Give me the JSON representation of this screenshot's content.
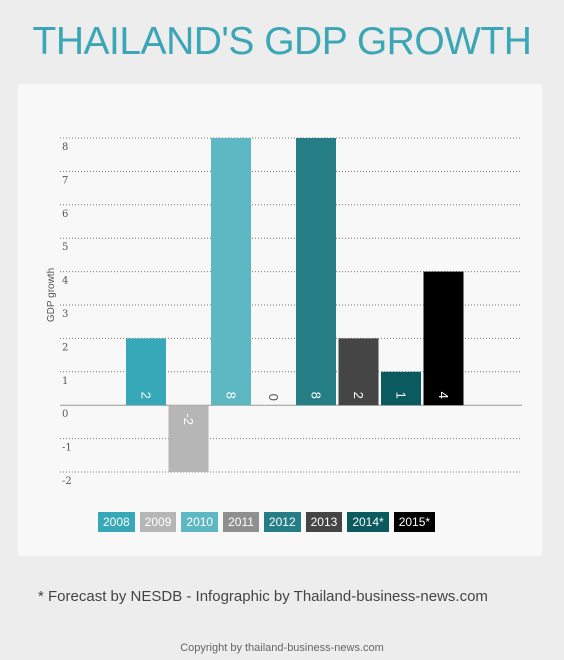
{
  "title": "THAILAND'S GDP GROWTH",
  "note": "* Forecast by NESDB - Infographic by Thailand-business-news.com",
  "copyright": "Copyright by thailand-business-news.com",
  "chart_data": {
    "type": "bar",
    "title": "THAILAND'S GDP GROWTH",
    "ylabel": "GDP growth",
    "xlabel": "",
    "ylim": [
      -2,
      8
    ],
    "yticks": [
      8,
      7,
      6,
      5,
      4,
      3,
      2,
      1,
      0,
      -1,
      -2
    ],
    "grid": true,
    "legend_position": "bottom",
    "categories": [
      "2008",
      "2009",
      "2010",
      "2011",
      "2012",
      "2013",
      "2014*",
      "2015*"
    ],
    "values": [
      2,
      -2,
      8,
      0,
      8,
      2,
      1,
      4
    ],
    "data_labels": [
      "2",
      "-2",
      "8",
      "0",
      "8",
      "2",
      "1",
      "4"
    ],
    "colors": [
      "#36a8b7",
      "#b6b6b6",
      "#5eb8c4",
      "#8f8f8f",
      "#257d85",
      "#454545",
      "#0a5a60",
      "#000000"
    ]
  }
}
